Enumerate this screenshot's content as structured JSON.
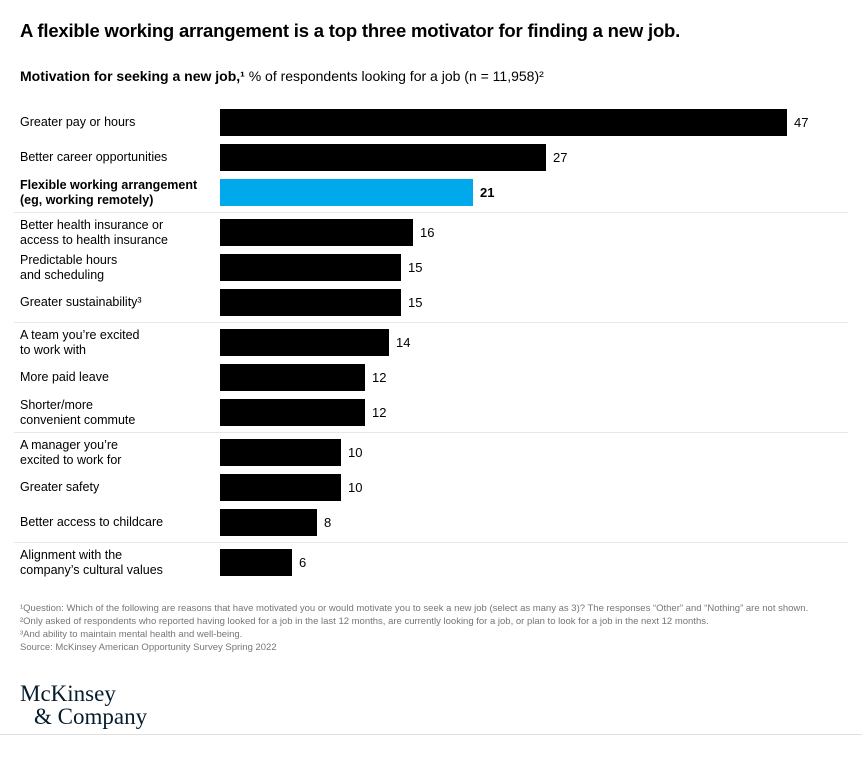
{
  "header": {
    "title": "A flexible working arrangement is a top three motivator for finding a new job.",
    "subtitle_bold": "Motivation for seeking a new job,¹",
    "subtitle_regular": " % of respondents looking for a job (n = 11,958)²"
  },
  "chart_data": {
    "type": "bar",
    "orientation": "horizontal",
    "title": "Motivation for seeking a new job, % of respondents looking for a job (n = 11,958)",
    "categories": [
      "Greater pay or hours",
      "Better career opportunities",
      "Flexible working arrangement\n(eg, working remotely)",
      "Better health insurance or\naccess to health insurance",
      "Predictable hours\nand scheduling",
      "Greater sustainability³",
      "A team you’re excited\nto work with",
      "More paid leave",
      "Shorter/more\nconvenient commute",
      "A manager you’re\nexcited to work for",
      "Greater safety",
      "Better access to childcare",
      "Alignment with the\ncompany’s cultural values"
    ],
    "values": [
      47,
      27,
      21,
      16,
      15,
      15,
      14,
      12,
      12,
      10,
      10,
      8,
      6
    ],
    "xlim": [
      0,
      47
    ],
    "highlight_index": 2,
    "bar_color": "#000000",
    "highlight_color": "#00A9EC",
    "dividers_after_indices": [
      2,
      5,
      8,
      11
    ],
    "legend": "none",
    "grid": "off"
  },
  "footnotes": [
    "¹Question: Which of the following are reasons that have motivated you or would motivate you to seek a new job (select as many as 3)? The responses “Other” and “Nothing” are not shown.",
    "²Only asked of respondents who reported having looked for a job in the last 12 months, are currently looking for a job, or plan to look for a job in the next 12 months.",
    "³And ability to maintain mental health and well-being.",
    "Source: McKinsey American Opportunity Survey Spring 2022"
  ],
  "logo": {
    "line1": "McKinsey",
    "line2": "& Company"
  },
  "colors": {
    "bar": "#000000",
    "highlight": "#00A9EC",
    "divider": "#e8e8e8",
    "footnote_text": "#767676",
    "logo_navy": "#051C2C"
  }
}
